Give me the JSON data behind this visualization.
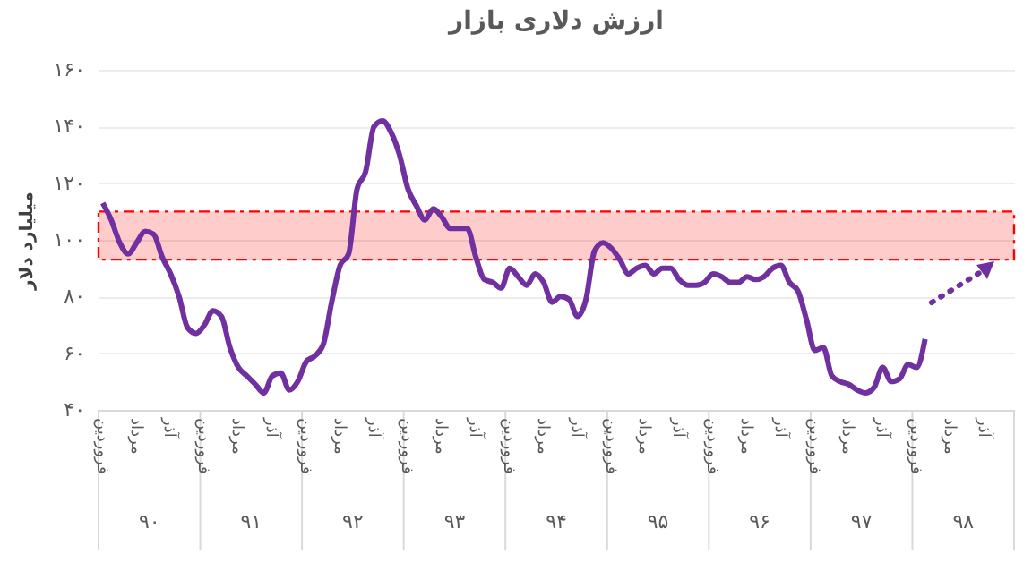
{
  "chart_data": {
    "type": "line",
    "title": "ارزش دلاری بازار",
    "ylabel": "میلیارد دلار",
    "categories": [
      "فروردین",
      null,
      null,
      null,
      "مرداد",
      null,
      null,
      null,
      "آذر",
      null,
      null,
      null,
      "فروردین",
      null,
      null,
      null,
      "مرداد",
      null,
      null,
      null,
      "آذر",
      null,
      null,
      null,
      "فروردین",
      null,
      null,
      null,
      "مرداد",
      null,
      null,
      null,
      "آذر",
      null,
      null,
      null,
      "فروردین",
      null,
      null,
      null,
      "مرداد",
      null,
      null,
      null,
      "آذر",
      null,
      null,
      null,
      "فروردین",
      null,
      null,
      null,
      "مرداد",
      null,
      null,
      null,
      "آذر",
      null,
      null,
      null,
      "فروردین",
      null,
      null,
      null,
      "مرداد",
      null,
      null,
      null,
      "آذر",
      null,
      null,
      null,
      "فروردین",
      null,
      null,
      null,
      "مرداد",
      null,
      null,
      null,
      "آذر",
      null,
      null,
      null,
      "فروردین",
      null,
      null,
      null,
      "مرداد",
      null,
      null,
      null,
      "آذر",
      null,
      null,
      null,
      "فروردین",
      null,
      null,
      null,
      "مرداد",
      null,
      null,
      null,
      "آذر",
      null,
      null,
      null
    ],
    "series": [
      {
        "color": "#7030a0",
        "values": [
          113,
          107,
          99,
          95,
          99,
          103,
          102,
          94,
          88,
          80,
          69,
          67,
          70,
          75,
          73,
          62,
          55,
          52,
          49,
          46,
          52,
          53,
          47,
          50,
          57,
          59,
          63,
          78,
          91,
          95,
          118,
          124,
          140,
          142,
          138,
          130,
          118,
          112,
          107,
          111,
          108,
          104,
          104,
          104,
          94,
          86,
          85,
          83,
          90,
          87,
          84,
          88,
          85,
          78,
          80,
          79,
          73,
          79,
          96,
          99,
          97,
          93,
          88,
          90,
          91,
          88,
          90,
          90,
          86,
          84,
          84,
          85,
          88,
          87,
          85,
          85,
          87,
          86,
          87,
          90,
          91,
          85,
          82,
          72,
          61,
          62,
          52,
          50,
          49,
          47,
          46,
          48,
          55,
          50,
          51,
          56,
          55,
          65,
          null,
          null,
          null,
          null,
          null,
          null,
          null,
          null,
          null,
          null
        ]
      }
    ],
    "annotations": [
      "۹۰",
      "۹۱",
      "۹۲",
      "۹۳",
      "۹۴",
      "۹۵",
      "۹۶",
      "۹۷",
      "۹۸"
    ],
    "ylim": [
      40,
      160
    ],
    "yticks": [
      {
        "value": 40,
        "label": "۴۰"
      },
      {
        "value": 60,
        "label": "۶۰"
      },
      {
        "value": 80,
        "label": "۸۰"
      },
      {
        "value": 100,
        "label": "۱۰۰"
      },
      {
        "value": 120,
        "label": "۱۲۰"
      },
      {
        "value": 140,
        "label": "۱۴۰"
      },
      {
        "value": 160,
        "label": "۱۶۰"
      }
    ],
    "bands": [
      {
        "axis": "y",
        "from": 93,
        "to": 110,
        "color": "#ff0000"
      }
    ],
    "grid": "y",
    "line_style": "solid",
    "marker": "none"
  }
}
